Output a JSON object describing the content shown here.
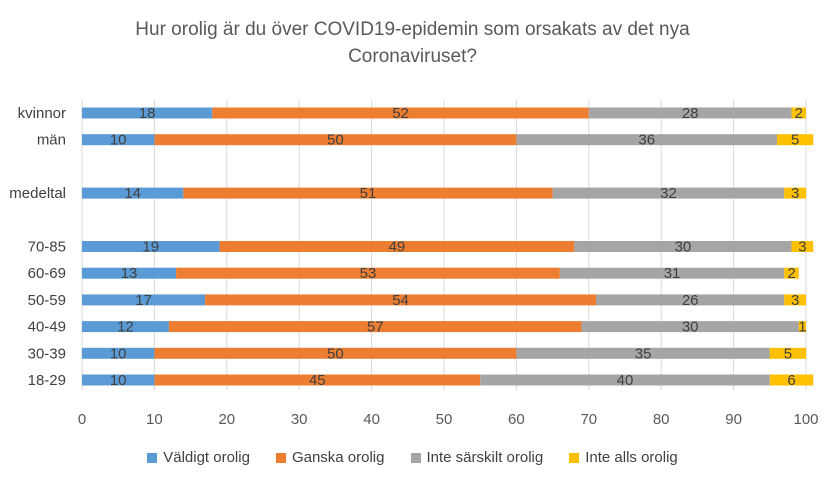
{
  "chart_data": {
    "type": "bar",
    "orientation": "horizontal",
    "stacked": true,
    "title_lines": [
      "Hur orolig är du över COVID19-epidemin som orsakats av det nya",
      "Coronaviruset?"
    ],
    "categories": [
      "kvinnor",
      "män",
      "",
      "medeltal",
      "",
      "70-85",
      "60-69",
      "50-59",
      "40-49",
      "30-39",
      "18-29"
    ],
    "series": [
      {
        "name": "Väldigt orolig",
        "color": "#5B9BD5",
        "values": [
          18,
          10,
          null,
          14,
          null,
          19,
          13,
          17,
          12,
          10,
          10
        ]
      },
      {
        "name": "Ganska orolig",
        "color": "#ED7D31",
        "values": [
          52,
          50,
          null,
          51,
          null,
          49,
          53,
          54,
          57,
          50,
          45
        ]
      },
      {
        "name": "Inte särskilt orolig",
        "color": "#A5A5A5",
        "values": [
          28,
          36,
          null,
          32,
          null,
          30,
          31,
          26,
          30,
          35,
          40
        ]
      },
      {
        "name": "Inte alls orolig",
        "color": "#FFC000",
        "values": [
          2,
          5,
          null,
          3,
          null,
          3,
          2,
          3,
          1,
          5,
          6
        ]
      }
    ],
    "xlim": [
      0,
      100
    ],
    "xticks": [
      0,
      10,
      20,
      30,
      40,
      50,
      60,
      70,
      80,
      90,
      100
    ],
    "grid": "vertical",
    "legend_position": "bottom"
  }
}
